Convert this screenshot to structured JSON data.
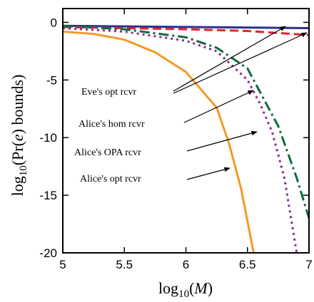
{
  "chart_data": {
    "type": "line",
    "xlabel": [
      "log",
      "10",
      "(",
      "M",
      ")"
    ],
    "ylabel": [
      "log",
      "10",
      "(Pr(",
      "e",
      ") bounds)"
    ],
    "xlim": [
      5,
      7
    ],
    "ylim": [
      -20,
      1.2
    ],
    "xticks": [
      5,
      5.5,
      6,
      6.5,
      7
    ],
    "yticks": [
      0,
      -5,
      -10,
      -15,
      -20
    ],
    "series": [
      {
        "color": "#2b2f8f",
        "dash": "solid",
        "x": [
          5,
          6,
          7
        ],
        "values": [
          -0.3,
          -0.4,
          -0.5
        ]
      },
      {
        "color": "#e0242b",
        "dash": "dashed",
        "x": [
          5,
          6,
          6.5,
          7
        ],
        "values": [
          -0.4,
          -0.6,
          -0.75,
          -1.1
        ]
      },
      {
        "color": "#0e6b3a",
        "dash": "dashdot",
        "x": [
          5,
          5.5,
          6,
          6.25,
          6.5,
          6.6,
          6.75,
          6.9,
          7
        ],
        "values": [
          -0.3,
          -0.6,
          -1.3,
          -2.2,
          -4,
          -6,
          -9,
          -13.5,
          -17
        ]
      },
      {
        "color": "#8b2a8e",
        "dash": "dotted",
        "x": [
          5,
          5.5,
          6,
          6.25,
          6.5,
          6.6,
          6.7,
          6.8,
          6.9
        ],
        "values": [
          -0.5,
          -0.8,
          -1.6,
          -2.5,
          -5,
          -7,
          -9.5,
          -13.5,
          -20
        ]
      },
      {
        "color": "#f39a24",
        "dash": "solid",
        "x": [
          5,
          5.25,
          5.5,
          5.75,
          6,
          6.25,
          6.35,
          6.45,
          6.55
        ],
        "values": [
          -0.8,
          -1.0,
          -1.5,
          -2.6,
          -4.3,
          -7.4,
          -10.5,
          -14.5,
          -20
        ]
      }
    ],
    "annotations": [
      "Eve's opt rcvr",
      "Alice's hom rcvr",
      "Alice's OPA rcvr",
      "Alice's opt rcvr"
    ]
  }
}
